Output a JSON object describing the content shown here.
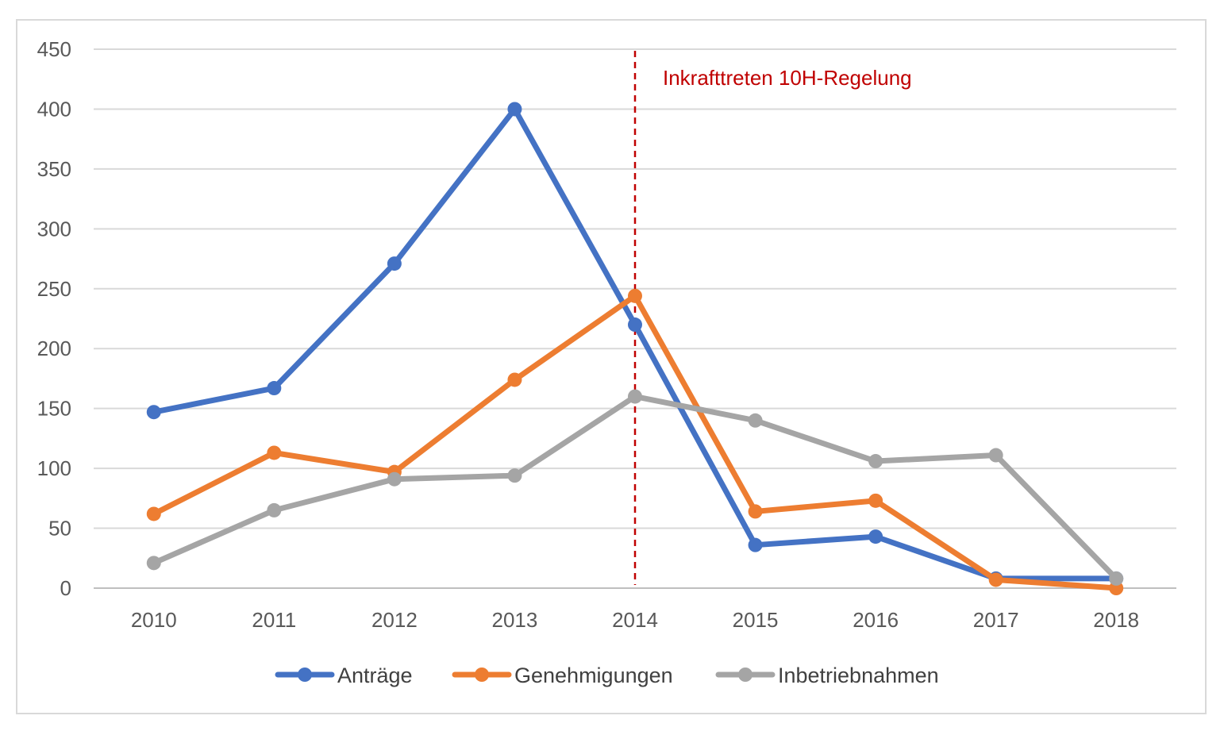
{
  "chart_data": {
    "type": "line",
    "title": "",
    "xlabel": "",
    "ylabel": "",
    "categories": [
      "2010",
      "2011",
      "2012",
      "2013",
      "2014",
      "2015",
      "2016",
      "2017",
      "2018"
    ],
    "ylim": [
      0,
      450
    ],
    "yticks": [
      0,
      50,
      100,
      150,
      200,
      250,
      300,
      350,
      400,
      450
    ],
    "grid": true,
    "legend": "bottom",
    "series": [
      {
        "name": "Anträge",
        "color": "#4472c4",
        "values": [
          147,
          167,
          271,
          400,
          220,
          36,
          43,
          8,
          8
        ]
      },
      {
        "name": "Genehmigungen",
        "color": "#ed7d31",
        "values": [
          62,
          113,
          97,
          174,
          244,
          64,
          73,
          7,
          0
        ]
      },
      {
        "name": "Inbetriebnahmen",
        "color": "#a5a5a5",
        "values": [
          21,
          65,
          91,
          94,
          160,
          140,
          106,
          111,
          8
        ]
      }
    ],
    "annotations": [
      {
        "text": "Inkrafttreten 10H-Regelung",
        "x": "2014",
        "style": "dashed-vertical-line",
        "color": "#c00000"
      }
    ]
  }
}
